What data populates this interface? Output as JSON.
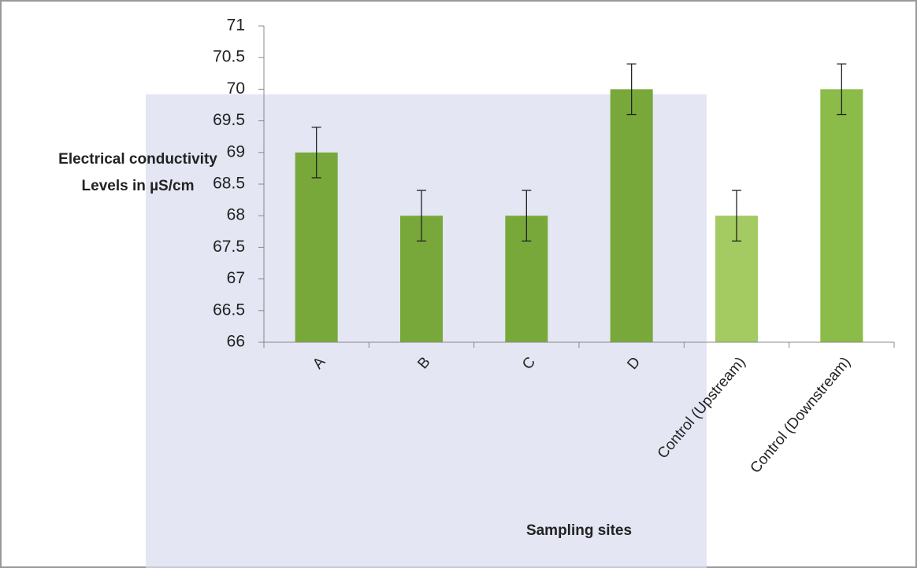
{
  "chart_data": {
    "type": "bar",
    "xlabel": "Sampling sites",
    "ylabel": "Electrical conductivity Levels in µS/cm",
    "categories": [
      "A",
      "B",
      "C",
      "D",
      "Control (Upstream)",
      "Control (Downstream)"
    ],
    "values": [
      69,
      68,
      68,
      70,
      68,
      70
    ],
    "errors": [
      0.4,
      0.4,
      0.4,
      0.4,
      0.4,
      0.4
    ],
    "colors": [
      "#78a83a",
      "#78a83a",
      "#78a83a",
      "#78a83a",
      "#a3cb62",
      "#8bbb48"
    ],
    "ylim": [
      66,
      71
    ],
    "yticks": [
      66,
      66.5,
      67,
      67.5,
      68,
      68.5,
      69,
      69.5,
      70,
      70.5,
      71
    ],
    "grid": false
  }
}
